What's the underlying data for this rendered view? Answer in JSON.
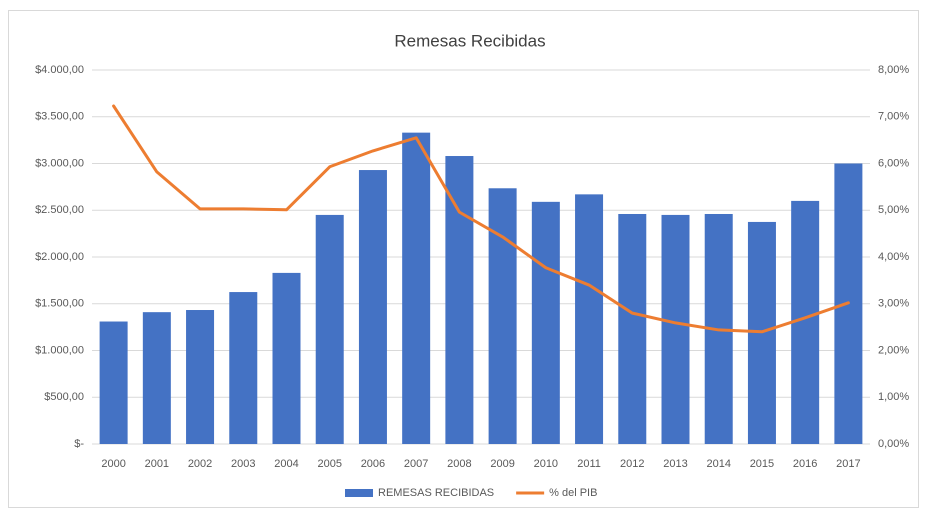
{
  "chart_data": {
    "type": "bar_line",
    "title": "Remesas Recibidas",
    "categories": [
      "2000",
      "2001",
      "2002",
      "2003",
      "2004",
      "2005",
      "2006",
      "2007",
      "2008",
      "2009",
      "2010",
      "2011",
      "2012",
      "2013",
      "2014",
      "2015",
      "2016",
      "2017"
    ],
    "series": [
      {
        "name": "REMESAS RECIBIDAS",
        "color": "#4472c4",
        "kind": "bar",
        "values": [
          1310,
          1410,
          1433,
          1625,
          1830,
          2450,
          2930,
          3330,
          3080,
          2735,
          2590,
          2670,
          2460,
          2450,
          2460,
          2375,
          2600,
          3000
        ]
      },
      {
        "name": "% del PIB",
        "color": "#ed7d31",
        "kind": "line",
        "axis": "y2",
        "values": [
          7.23,
          5.82,
          5.03,
          5.03,
          5.01,
          5.93,
          6.27,
          6.55,
          4.96,
          4.43,
          3.77,
          3.4,
          2.8,
          2.59,
          2.44,
          2.4,
          2.7,
          3.02
        ]
      }
    ],
    "ylim": [
      0,
      4000
    ],
    "yticks": [
      {
        "value": 0,
        "label": "$-"
      },
      {
        "value": 500,
        "label": "$500,00"
      },
      {
        "value": 1000,
        "label": "$1.000,00"
      },
      {
        "value": 1500,
        "label": "$1.500,00"
      },
      {
        "value": 2000,
        "label": "$2.000,00"
      },
      {
        "value": 2500,
        "label": "$2.500,00"
      },
      {
        "value": 3000,
        "label": "$3.000,00"
      },
      {
        "value": 3500,
        "label": "$3.500,00"
      },
      {
        "value": 4000,
        "label": "$4.000,00"
      }
    ],
    "y2lim": [
      0,
      8
    ],
    "y2ticks": [
      {
        "value": 0,
        "label": "0,00%"
      },
      {
        "value": 1,
        "label": "1,00%"
      },
      {
        "value": 2,
        "label": "2,00%"
      },
      {
        "value": 3,
        "label": "3,00%"
      },
      {
        "value": 4,
        "label": "4,00%"
      },
      {
        "value": 5,
        "label": "5,00%"
      },
      {
        "value": 6,
        "label": "6,00%"
      },
      {
        "value": 7,
        "label": "7,00%"
      },
      {
        "value": 8,
        "label": "8,00%"
      }
    ],
    "grid": true,
    "legend": "bottom"
  }
}
